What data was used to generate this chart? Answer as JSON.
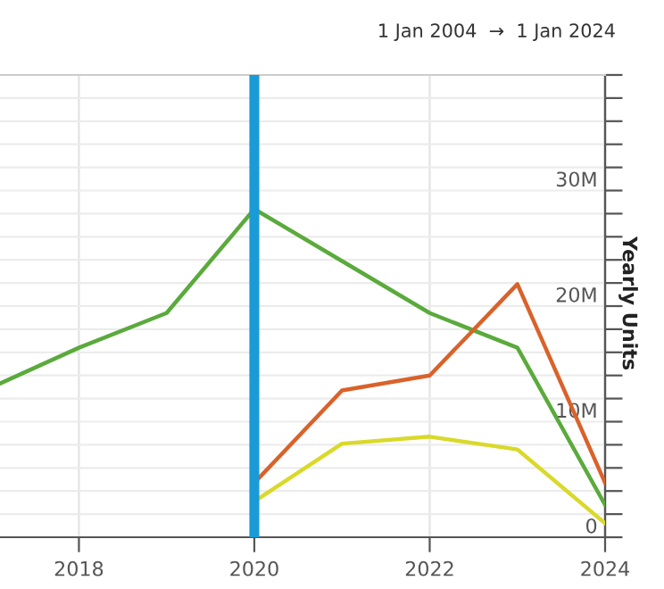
{
  "chart_data": {
    "type": "line",
    "subtitle": "1 Jan 2004  →  1 Jan 2024",
    "y2label": "Yearly Units",
    "x": [
      2017.1,
      2018,
      2019,
      2020,
      2021,
      2022,
      2023,
      2024
    ],
    "series": [
      {
        "color": "#5aaa3c",
        "axis": "y2",
        "values": [
          13300000,
          16400000,
          19400000,
          28400000,
          23900000,
          19400000,
          16400000,
          2800000
        ]
      },
      {
        "color": "#d9622b",
        "axis": "y2",
        "values": [
          null,
          null,
          null,
          4700000,
          12700000,
          14000000,
          21900000,
          4700000
        ]
      },
      {
        "color": "#d9d92a",
        "axis": "y2",
        "values": [
          null,
          null,
          null,
          3100000,
          8100000,
          8700000,
          7600000,
          1200000
        ]
      }
    ],
    "xlim": [
      2017.1,
      2024
    ],
    "xticks": [
      2018,
      2020,
      2022,
      2024
    ],
    "y2lim": [
      0,
      40000000
    ],
    "y2ticks": [
      0,
      {
        "value": 2000000,
        "label": null
      },
      {
        "value": 4000000,
        "label": null
      },
      {
        "value": 6000000,
        "label": null
      },
      {
        "value": 8000000,
        "label": null
      },
      {
        "value": 10000000,
        "label": "10M"
      },
      {
        "value": 12000000,
        "label": null
      },
      {
        "value": 14000000,
        "label": null
      },
      {
        "value": 16000000,
        "label": null
      },
      {
        "value": 18000000,
        "label": null
      },
      {
        "value": 20000000,
        "label": "20M"
      },
      {
        "value": 22000000,
        "label": null
      },
      {
        "value": 24000000,
        "label": null
      },
      {
        "value": 26000000,
        "label": null
      },
      {
        "value": 28000000,
        "label": null
      },
      {
        "value": 30000000,
        "label": "30M"
      },
      {
        "value": 32000000,
        "label": null
      },
      {
        "value": 34000000,
        "label": null
      },
      {
        "value": 36000000,
        "label": null
      },
      {
        "value": 38000000,
        "label": null
      },
      {
        "value": 40000000,
        "label": null
      }
    ],
    "ref_lines": [
      {
        "axis": "x",
        "value": 2020,
        "color": "#1a9bd7"
      }
    ],
    "grid": true,
    "marker": "none",
    "line_style": "solid"
  }
}
